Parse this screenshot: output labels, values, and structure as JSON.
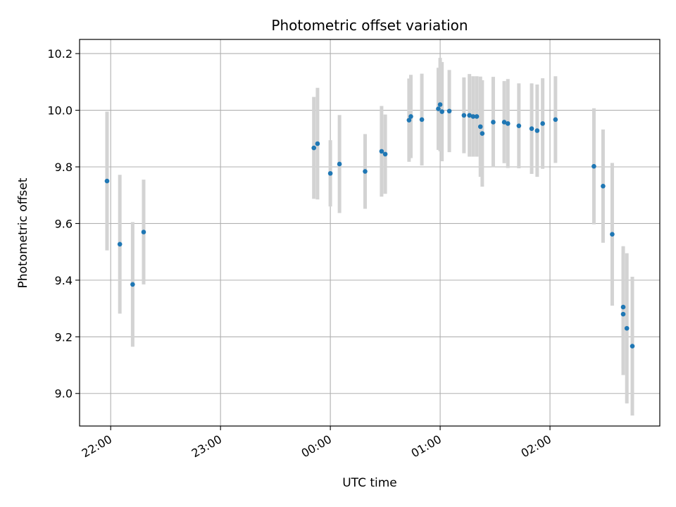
{
  "chart_data": {
    "type": "scatter",
    "title": "Photometric offset variation",
    "xlabel": "UTC time",
    "ylabel": "Photometric offset",
    "x_ticks": [
      "22:00",
      "23:00",
      "00:00",
      "01:00",
      "02:00"
    ],
    "y_ticks": [
      "9.0",
      "9.2",
      "9.4",
      "9.6",
      "9.8",
      "10.0",
      "10.2"
    ],
    "x_tick_minutes": [
      0,
      60,
      120,
      180,
      240
    ],
    "y_tick_values": [
      9.0,
      9.2,
      9.4,
      9.6,
      9.8,
      10.0,
      10.2
    ],
    "xlim_minutes": [
      -17,
      300
    ],
    "ylim": [
      8.885,
      10.25
    ],
    "grid": true,
    "colors": {
      "marker": "#1f77b4",
      "errorbar": "#d3d3d3",
      "grid": "#b0b0b0"
    },
    "points": [
      {
        "x": "21:58",
        "y": 9.75,
        "err": 0.245
      },
      {
        "x": "22:05",
        "y": 9.527,
        "err": 0.245
      },
      {
        "x": "22:12",
        "y": 9.385,
        "err": 0.22
      },
      {
        "x": "22:18",
        "y": 9.57,
        "err": 0.185
      },
      {
        "x": "23:51",
        "y": 9.867,
        "err": 0.18
      },
      {
        "x": "23:53",
        "y": 9.882,
        "err": 0.197
      },
      {
        "x": "00:00",
        "y": 9.777,
        "err": 0.117
      },
      {
        "x": "00:05",
        "y": 9.81,
        "err": 0.173
      },
      {
        "x": "00:19",
        "y": 9.784,
        "err": 0.132
      },
      {
        "x": "00:28",
        "y": 9.855,
        "err": 0.16
      },
      {
        "x": "00:30",
        "y": 9.845,
        "err": 0.14
      },
      {
        "x": "00:43",
        "y": 9.965,
        "err": 0.147
      },
      {
        "x": "00:44",
        "y": 9.978,
        "err": 0.147
      },
      {
        "x": "00:50",
        "y": 9.967,
        "err": 0.162
      },
      {
        "x": "00:59",
        "y": 10.005,
        "err": 0.145
      },
      {
        "x": "01:00",
        "y": 10.02,
        "err": 0.165
      },
      {
        "x": "01:01",
        "y": 9.995,
        "err": 0.175
      },
      {
        "x": "01:05",
        "y": 9.997,
        "err": 0.145
      },
      {
        "x": "01:13",
        "y": 9.982,
        "err": 0.134
      },
      {
        "x": "01:16",
        "y": 9.982,
        "err": 0.146
      },
      {
        "x": "01:18",
        "y": 9.978,
        "err": 0.142
      },
      {
        "x": "01:20",
        "y": 9.978,
        "err": 0.142
      },
      {
        "x": "01:22",
        "y": 9.942,
        "err": 0.177
      },
      {
        "x": "01:23",
        "y": 9.918,
        "err": 0.188
      },
      {
        "x": "01:29",
        "y": 9.958,
        "err": 0.16
      },
      {
        "x": "01:35",
        "y": 9.958,
        "err": 0.145
      },
      {
        "x": "01:37",
        "y": 9.953,
        "err": 0.157
      },
      {
        "x": "01:43",
        "y": 9.945,
        "err": 0.15
      },
      {
        "x": "01:50",
        "y": 9.935,
        "err": 0.16
      },
      {
        "x": "01:53",
        "y": 9.928,
        "err": 0.163
      },
      {
        "x": "01:56",
        "y": 9.953,
        "err": 0.16
      },
      {
        "x": "02:03",
        "y": 9.967,
        "err": 0.153
      },
      {
        "x": "02:24",
        "y": 9.802,
        "err": 0.205
      },
      {
        "x": "02:29",
        "y": 9.732,
        "err": 0.2
      },
      {
        "x": "02:34",
        "y": 9.562,
        "err": 0.252
      },
      {
        "x": "02:40",
        "y": 9.305,
        "err": 0.215
      },
      {
        "x": "02:40",
        "y": 9.28,
        "err": 0.215
      },
      {
        "x": "02:42",
        "y": 9.23,
        "err": 0.265
      },
      {
        "x": "02:45",
        "y": 9.167,
        "err": 0.245
      }
    ]
  }
}
